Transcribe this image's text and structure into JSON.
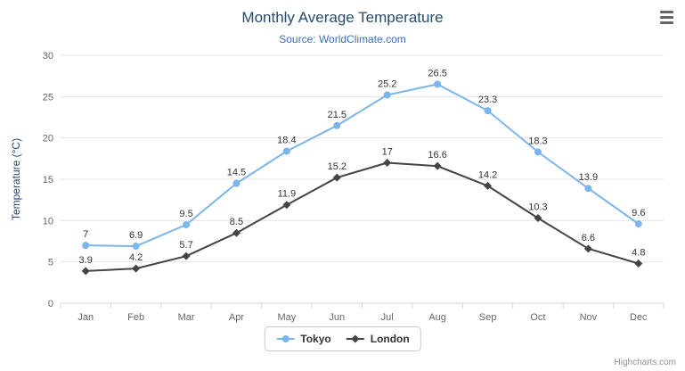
{
  "header": {
    "title": "Monthly Average Temperature",
    "subtitle": "Source: WorldClimate.com"
  },
  "credits": "Highcharts.com",
  "colors": {
    "tokyo": "#7cb5ec",
    "london": "#434348",
    "grid": "#e6e6e6",
    "axis_line": "#ccd6eb",
    "axis_label": "#666666",
    "data_label": "#333333",
    "title": "#274b6d",
    "subtitle": "#3b6fb5"
  },
  "chart_data": {
    "type": "line",
    "title": "Monthly Average Temperature",
    "subtitle": "Source: WorldClimate.com",
    "categories": [
      "Jan",
      "Feb",
      "Mar",
      "Apr",
      "May",
      "Jun",
      "Jul",
      "Aug",
      "Sep",
      "Oct",
      "Nov",
      "Dec"
    ],
    "series": [
      {
        "name": "Tokyo",
        "color": "#7cb5ec",
        "marker": "circle",
        "values": [
          7,
          6.9,
          9.5,
          14.5,
          18.4,
          21.5,
          25.2,
          26.5,
          23.3,
          18.3,
          13.9,
          9.6
        ]
      },
      {
        "name": "London",
        "color": "#434348",
        "marker": "diamond",
        "values": [
          3.9,
          4.2,
          5.7,
          8.5,
          11.9,
          15.2,
          17,
          16.6,
          14.2,
          10.3,
          6.6,
          4.8
        ]
      }
    ],
    "xlabel": "",
    "ylabel": "Temperature (°C)",
    "ylim": [
      0,
      30
    ],
    "ytick_step": 5,
    "grid": true,
    "legend_position": "bottom",
    "data_labels": true
  }
}
